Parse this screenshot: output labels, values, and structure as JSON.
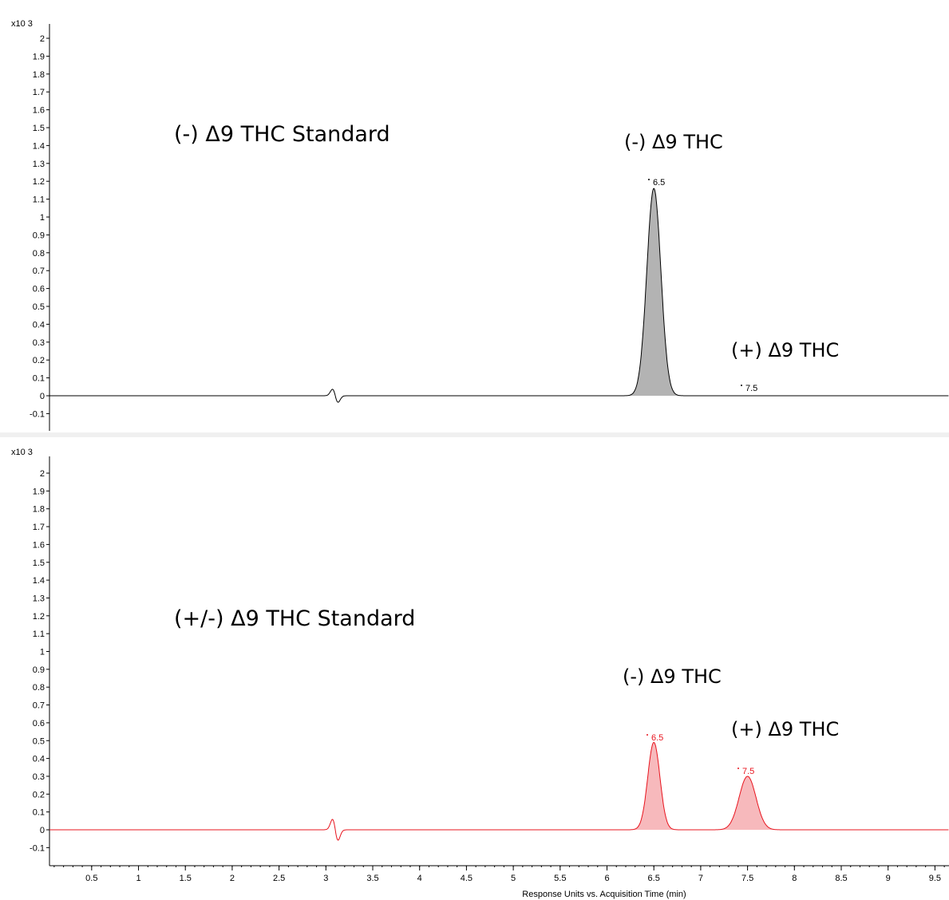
{
  "chart_data": [
    {
      "type": "line",
      "panel": "top",
      "scale_label": "x10 3",
      "title": "(-) Δ9 THC Standard",
      "xlim": [
        0.05,
        9.65
      ],
      "ylim": [
        -0.2,
        2.1
      ],
      "y_ticks": [
        -0.1,
        0,
        0.1,
        0.2,
        0.3,
        0.4,
        0.5,
        0.6,
        0.7,
        0.8,
        0.9,
        1,
        1.1,
        1.2,
        1.3,
        1.4,
        1.5,
        1.6,
        1.7,
        1.8,
        1.9,
        2
      ],
      "color": "#000000",
      "fill": "#b3b3b3",
      "peaks": [
        {
          "rt": 6.5,
          "height": 1.16,
          "sigma": 0.075,
          "rt_label": "6.5",
          "compound": "(-) Δ9 THC",
          "fill": true
        },
        {
          "rt": 7.5,
          "height": 0.0,
          "sigma": 0.06,
          "rt_label": "7.5",
          "compound": "(+) Δ9 THC",
          "fill": false
        }
      ],
      "disturbances": [
        {
          "t": 3.1,
          "amp": 0.05
        }
      ]
    },
    {
      "type": "line",
      "panel": "bottom",
      "scale_label": "x10 3",
      "title": "(+/-) Δ9 THC Standard",
      "xlim": [
        0.05,
        9.65
      ],
      "ylim": [
        -0.2,
        2.1
      ],
      "y_ticks": [
        -0.1,
        0,
        0.1,
        0.2,
        0.3,
        0.4,
        0.5,
        0.6,
        0.7,
        0.8,
        0.9,
        1,
        1.1,
        1.2,
        1.3,
        1.4,
        1.5,
        1.6,
        1.7,
        1.8,
        1.9,
        2
      ],
      "x_ticks": [
        0.5,
        1,
        1.5,
        2,
        2.5,
        3,
        3.5,
        4,
        4.5,
        5,
        5.5,
        6,
        6.5,
        7,
        7.5,
        8,
        8.5,
        9,
        9.5
      ],
      "xlabel": "Response Units vs. Acquisition Time (min)",
      "color": "#e8141e",
      "fill": "#f7b9bc",
      "peaks": [
        {
          "rt": 6.5,
          "height": 0.49,
          "sigma": 0.065,
          "rt_label": "6.5",
          "compound": "(-) Δ9 THC",
          "fill": true
        },
        {
          "rt": 7.5,
          "height": 0.3,
          "sigma": 0.09,
          "rt_label": "7.5",
          "compound": "(+) Δ9 THC",
          "fill": true
        }
      ],
      "disturbances": [
        {
          "t": 3.1,
          "amp": 0.08
        }
      ]
    }
  ]
}
